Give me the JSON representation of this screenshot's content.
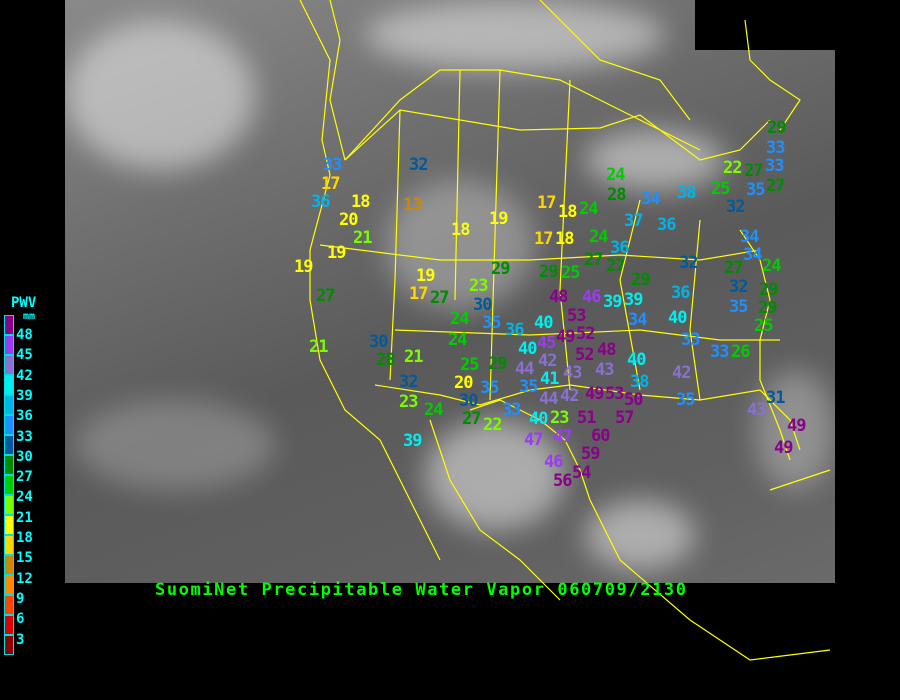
{
  "title": "SuomiNet Precipitable Water Vapor 060709/2130",
  "legend": {
    "title": "PWV",
    "unit": "mm",
    "labels": [
      "48",
      "45",
      "42",
      "39",
      "36",
      "33",
      "30",
      "27",
      "24",
      "21",
      "18",
      "15",
      "12",
      "9",
      "6",
      "3"
    ],
    "colors": [
      "#8b008b",
      "#9a3cf0",
      "#8a70d0",
      "#00eeee",
      "#00b4e8",
      "#1e90ff",
      "#005a9c",
      "#008b00",
      "#00cd00",
      "#7cfc00",
      "#ffff00",
      "#ffd700",
      "#cc8800",
      "#ff8800",
      "#ff4400",
      "#dd0000",
      "#8b0000"
    ]
  },
  "stations": [
    "33",
    "17",
    "36",
    "18",
    "20",
    "13",
    "32",
    "18",
    "19",
    "21",
    "19",
    "19",
    "29",
    "19",
    "17",
    "27",
    "27",
    "23",
    "30",
    "17",
    "18",
    "17",
    "18",
    "24",
    "28",
    "24",
    "34",
    "38",
    "37",
    "36",
    "24",
    "36",
    "27",
    "27",
    "29",
    "25",
    "29",
    "32",
    "22",
    "25",
    "32",
    "35",
    "29",
    "33",
    "33",
    "27",
    "27",
    "34",
    "34",
    "27",
    "32",
    "24",
    "35",
    "29",
    "29",
    "25",
    "33",
    "26",
    "31",
    "43",
    "49",
    "49",
    "48",
    "46",
    "53",
    "39",
    "39",
    "36",
    "52",
    "34",
    "40",
    "49",
    "35",
    "36",
    "40",
    "45",
    "33",
    "52",
    "48",
    "40",
    "42",
    "44",
    "43",
    "40",
    "42",
    "43",
    "24",
    "25",
    "29",
    "35",
    "41",
    "42",
    "20",
    "35",
    "38",
    "30",
    "44",
    "49",
    "53",
    "50",
    "33",
    "40",
    "35",
    "51",
    "57",
    "60",
    "22",
    "47",
    "47",
    "59",
    "46",
    "54",
    "56",
    "21",
    "30",
    "28",
    "21",
    "32",
    "23",
    "24",
    "27",
    "24",
    "39",
    "23"
  ]
}
